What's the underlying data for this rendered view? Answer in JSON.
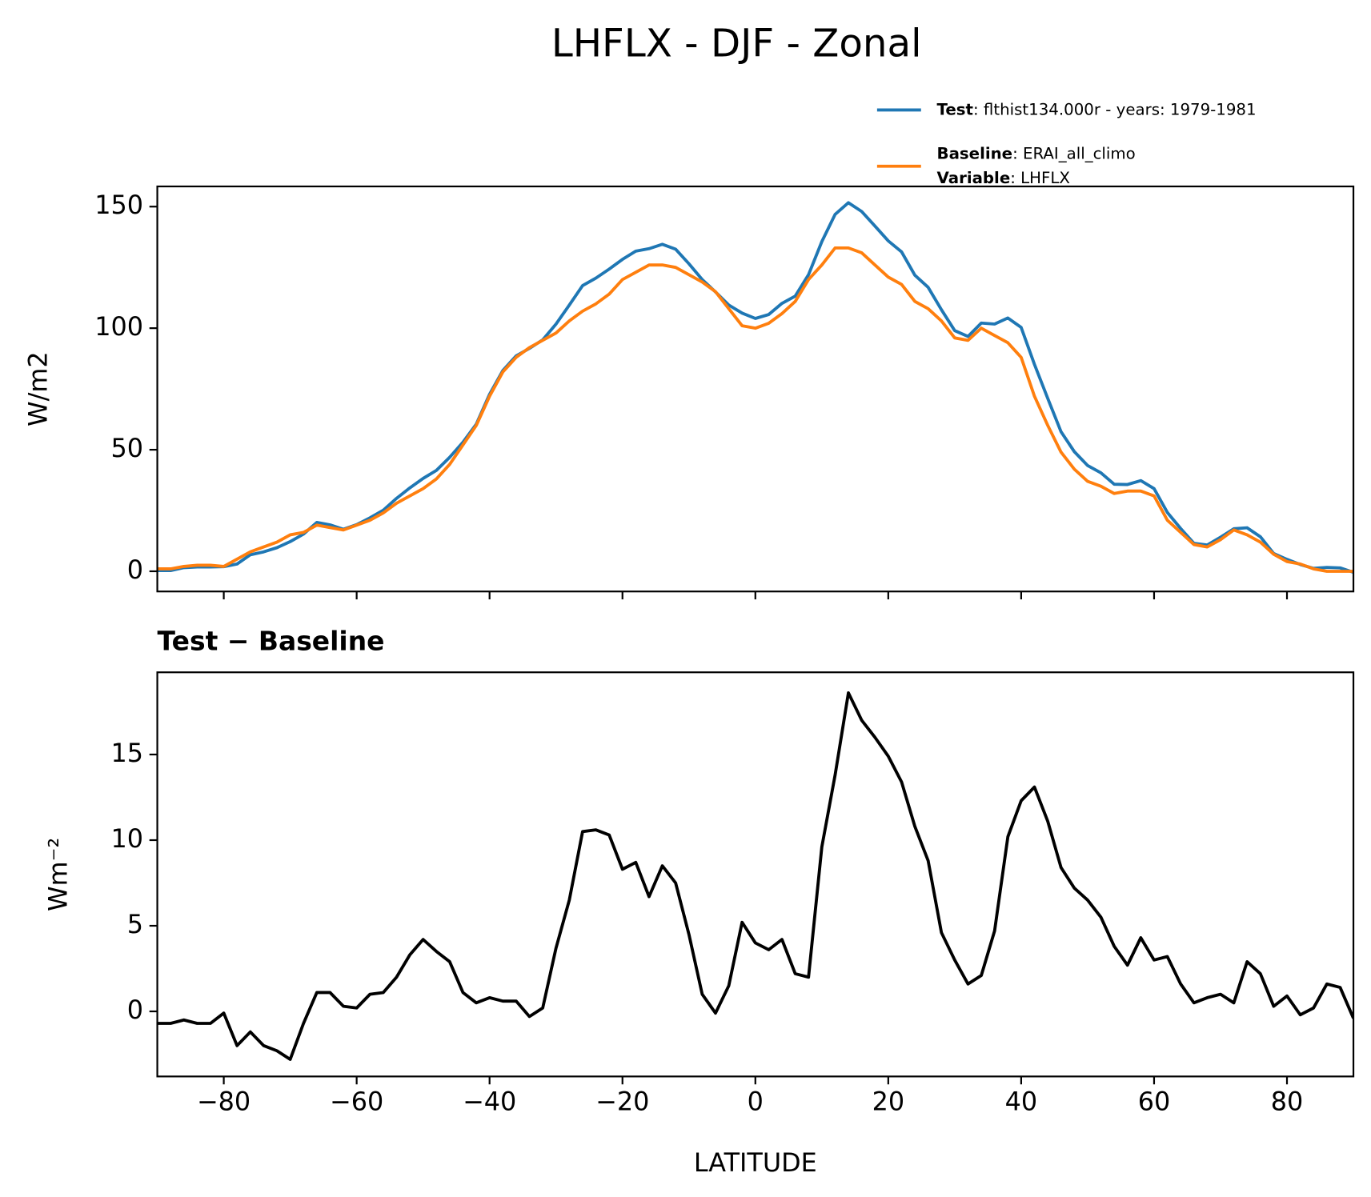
{
  "title": "LHFLX - DJF - Zonal",
  "chart_data": [
    {
      "type": "line",
      "ylabel": "W/m2",
      "xlim": [
        -90,
        90
      ],
      "ylim": [
        -8.3,
        158.3
      ],
      "xticks": [
        -80,
        -60,
        -40,
        -20,
        0,
        20,
        40,
        60,
        80
      ],
      "xticklabels": false,
      "yticks": [
        0,
        50,
        100,
        150
      ],
      "legend": "upper right",
      "x": [
        -90,
        -88,
        -86,
        -84,
        -82,
        -80,
        -78,
        -76,
        -74,
        -72,
        -70,
        -68,
        -66,
        -64,
        -62,
        -60,
        -58,
        -56,
        -54,
        -52,
        -50,
        -48,
        -46,
        -44,
        -42,
        -40,
        -38,
        -36,
        -34,
        -32,
        -30,
        -28,
        -26,
        -24,
        -22,
        -20,
        -18,
        -16,
        -14,
        -12,
        -10,
        -8,
        -6,
        -4,
        -2,
        0,
        2,
        4,
        6,
        8,
        10,
        12,
        14,
        16,
        18,
        20,
        22,
        24,
        26,
        28,
        30,
        32,
        34,
        36,
        38,
        40,
        42,
        44,
        46,
        48,
        50,
        52,
        54,
        56,
        58,
        60,
        62,
        64,
        66,
        68,
        70,
        72,
        74,
        76,
        78,
        80,
        82,
        84,
        86,
        88,
        90
      ],
      "series": [
        {
          "name": "Test",
          "description": ": flthist134.000r - years: 1979-1981",
          "color": "#1f77b4",
          "values": [
            0.3,
            0.3,
            1.5,
            1.8,
            1.8,
            1.9,
            3,
            6.8,
            8,
            9.7,
            12.2,
            15.3,
            20.1,
            19.1,
            17.3,
            19.2,
            22,
            25.1,
            30,
            34.3,
            38.2,
            41.5,
            46.9,
            53.1,
            60.5,
            72.8,
            82.6,
            88.6,
            91.7,
            95.2,
            101.7,
            109.5,
            117.5,
            120.6,
            124.3,
            128.3,
            131.7,
            132.7,
            134.5,
            132.5,
            126.5,
            120,
            114.9,
            109.5,
            106.2,
            104,
            105.6,
            110.2,
            113.2,
            122,
            135.6,
            146.8,
            151.6,
            148,
            142,
            135.9,
            131.4,
            121.8,
            116.8,
            107.6,
            99,
            96.6,
            102.1,
            101.7,
            104.2,
            100.3,
            85.1,
            71.1,
            57.4,
            49.2,
            43.5,
            40.5,
            35.8,
            35.7,
            37.3,
            34,
            24.2,
            17.6,
            11.5,
            10.8,
            14,
            17.5,
            17.9,
            14.2,
            7.3,
            4.9,
            2.8,
            1.2,
            1.6,
            1.4,
            -0.4
          ]
        },
        {
          "name": "Baseline",
          "description": ": ERAI_all_climo",
          "variable_label": "Variable",
          "variable": ": LHFLX",
          "color": "#ff7f0e",
          "values": [
            1,
            1,
            2,
            2.5,
            2.5,
            2,
            5,
            8,
            10,
            12,
            15,
            16,
            19,
            18,
            17,
            19,
            21,
            24,
            28,
            31,
            34,
            38,
            44,
            52,
            60,
            72,
            82,
            88,
            92,
            95,
            98,
            103,
            107,
            110,
            114,
            120,
            123,
            126,
            126,
            125,
            122,
            119,
            115,
            108,
            101,
            100,
            102,
            106,
            111,
            120,
            126,
            133,
            133,
            131,
            126,
            121,
            118,
            111,
            108,
            103,
            96,
            95,
            100,
            97,
            94,
            88,
            72,
            60,
            49,
            42,
            37,
            35,
            32,
            33,
            33,
            31,
            21,
            16,
            11,
            10,
            13,
            17,
            15,
            12,
            7,
            4,
            3,
            1,
            0,
            0,
            0
          ]
        }
      ]
    },
    {
      "type": "line",
      "title": "Test − Baseline",
      "xlabel": "LATITUDE",
      "ylabel": "Wm⁻²",
      "xlim": [
        -90,
        90
      ],
      "ylim": [
        -3.8,
        19.8
      ],
      "xticks": [
        {
          "value": -80,
          "label": "−80"
        },
        {
          "value": -60,
          "label": "−60"
        },
        {
          "value": -40,
          "label": "−40"
        },
        {
          "value": -20,
          "label": "−20"
        },
        0,
        20,
        40,
        60,
        80
      ],
      "xticklabels": true,
      "yticks": [
        0,
        5,
        10,
        15
      ],
      "x": [
        -90,
        -88,
        -86,
        -84,
        -82,
        -80,
        -78,
        -76,
        -74,
        -72,
        -70,
        -68,
        -66,
        -64,
        -62,
        -60,
        -58,
        -56,
        -54,
        -52,
        -50,
        -48,
        -46,
        -44,
        -42,
        -40,
        -38,
        -36,
        -34,
        -32,
        -30,
        -28,
        -26,
        -24,
        -22,
        -20,
        -18,
        -16,
        -14,
        -12,
        -10,
        -8,
        -6,
        -4,
        -2,
        0,
        2,
        4,
        6,
        8,
        10,
        12,
        14,
        16,
        18,
        20,
        22,
        24,
        26,
        28,
        30,
        32,
        34,
        36,
        38,
        40,
        42,
        44,
        46,
        48,
        50,
        52,
        54,
        56,
        58,
        60,
        62,
        64,
        66,
        68,
        70,
        72,
        74,
        76,
        78,
        80,
        82,
        84,
        86,
        88,
        90
      ],
      "series": [
        {
          "color": "#000000",
          "values": [
            -0.7,
            -0.7,
            -0.5,
            -0.7,
            -0.7,
            -0.1,
            -2,
            -1.2,
            -2,
            -2.3,
            -2.8,
            -0.7,
            1.1,
            1.1,
            0.3,
            0.2,
            1,
            1.1,
            2,
            3.3,
            4.2,
            3.5,
            2.9,
            1.1,
            0.5,
            0.8,
            0.6,
            0.6,
            -0.3,
            0.2,
            3.7,
            6.5,
            10.5,
            10.6,
            10.3,
            8.3,
            8.7,
            6.7,
            8.5,
            7.5,
            4.5,
            1,
            -0.1,
            1.5,
            5.2,
            4,
            3.6,
            4.2,
            2.2,
            2,
            9.6,
            13.8,
            18.6,
            17,
            16,
            14.9,
            13.4,
            10.8,
            8.8,
            4.6,
            3,
            1.6,
            2.1,
            4.7,
            10.2,
            12.3,
            13.1,
            11.1,
            8.4,
            7.2,
            6.5,
            5.5,
            3.8,
            2.7,
            4.3,
            3,
            3.2,
            1.6,
            0.5,
            0.8,
            1,
            0.5,
            2.9,
            2.2,
            0.3,
            0.9,
            -0.2,
            0.2,
            1.6,
            1.4,
            -0.4
          ]
        }
      ]
    }
  ]
}
